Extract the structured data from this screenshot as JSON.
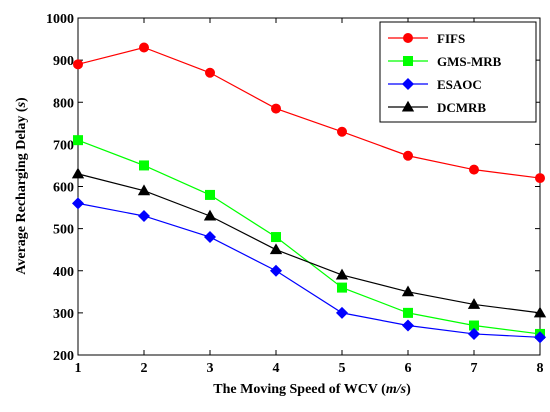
{
  "chart_data": {
    "type": "line",
    "xlabel": "The Moving Speed of WCV",
    "xlabel_unit": "m/s",
    "ylabel": "Average Recharging Delay",
    "ylabel_unit": "s",
    "xlim": [
      1,
      8
    ],
    "ylim": [
      200,
      1000
    ],
    "x": [
      1,
      2,
      3,
      4,
      5,
      6,
      7,
      8
    ],
    "x_ticks": [
      "1",
      "2",
      "3",
      "4",
      "5",
      "6",
      "7",
      "8"
    ],
    "y_ticks": [
      "200",
      "300",
      "400",
      "500",
      "600",
      "700",
      "800",
      "900",
      "1000"
    ],
    "grid": false,
    "legend_position": "top-right",
    "series": [
      {
        "name": "FIFS",
        "color": "#ff0000",
        "marker": "circle",
        "values": [
          890,
          930,
          870,
          785,
          730,
          673,
          640,
          620
        ]
      },
      {
        "name": "GMS-MRB",
        "color": "#00ff00",
        "marker": "square",
        "values": [
          710,
          650,
          580,
          480,
          360,
          300,
          270,
          250
        ]
      },
      {
        "name": "ESAOC",
        "color": "#0000ff",
        "marker": "diamond",
        "values": [
          560,
          530,
          480,
          400,
          300,
          270,
          250,
          242
        ]
      },
      {
        "name": "DCMRB",
        "color": "#000000",
        "marker": "triangle",
        "values": [
          630,
          590,
          530,
          450,
          390,
          350,
          320,
          300
        ]
      }
    ]
  }
}
